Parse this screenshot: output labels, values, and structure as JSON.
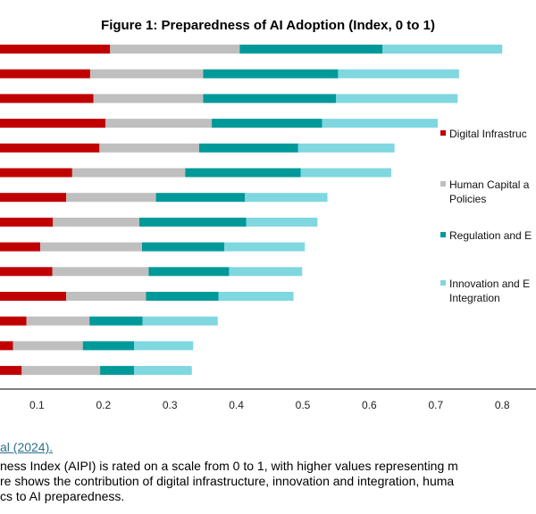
{
  "chart_data": {
    "type": "bar",
    "orientation": "horizontal",
    "stacked": true,
    "title": "Figure 1: Preparedness of AI Adoption (Index, 0 to 1)",
    "categories": [
      "",
      "",
      "",
      "",
      "",
      "",
      "",
      "",
      "",
      "",
      "",
      "",
      "",
      ""
    ],
    "series": [
      {
        "name": "Digital Infrastructure",
        "color": "#c00000",
        "values": [
          0.21,
          0.18,
          0.185,
          0.203,
          0.194,
          0.153,
          0.144,
          0.124,
          0.105,
          0.123,
          0.144,
          0.084,
          0.064,
          0.077
        ]
      },
      {
        "name": "Human Capital and Policies",
        "color": "#bfbfbf",
        "values": [
          0.195,
          0.17,
          0.165,
          0.16,
          0.15,
          0.17,
          0.135,
          0.13,
          0.153,
          0.145,
          0.12,
          0.095,
          0.105,
          0.118
        ]
      },
      {
        "name": "Regulation and Ethics",
        "color": "#009999",
        "values": [
          0.215,
          0.203,
          0.2,
          0.166,
          0.149,
          0.174,
          0.134,
          0.161,
          0.124,
          0.121,
          0.109,
          0.08,
          0.077,
          0.051
        ]
      },
      {
        "name": "Innovation and Economic Integration",
        "color": "#7fd7e0",
        "values": [
          0.18,
          0.182,
          0.183,
          0.174,
          0.145,
          0.136,
          0.124,
          0.107,
          0.121,
          0.11,
          0.113,
          0.113,
          0.089,
          0.087
        ]
      }
    ],
    "xlim": [
      0,
      0.8
    ],
    "xticks": [
      "0.1",
      "0.2",
      "0.3",
      "0.4",
      "0.5",
      "0.6",
      "0.7",
      "0.8"
    ],
    "xtick_values": [
      0.1,
      0.2,
      0.3,
      0.4,
      0.5,
      0.6,
      0.7,
      0.8
    ],
    "grid": false,
    "legend_position": "right"
  },
  "legend": {
    "lines": [
      [
        "Digital Infrastruc"
      ],
      [
        "Human Capital a",
        "Policies"
      ],
      [
        "Regulation and E"
      ],
      [
        "Innovation and E",
        "Integration"
      ]
    ]
  },
  "source_text": "al (2024).",
  "note_lines": [
    "ness Index (AIPI) is rated on a scale from 0 to 1, with higher values representing m",
    "re shows the contribution of digital infrastructure, innovation and integration, huma",
    "cs to AI preparedness."
  ]
}
